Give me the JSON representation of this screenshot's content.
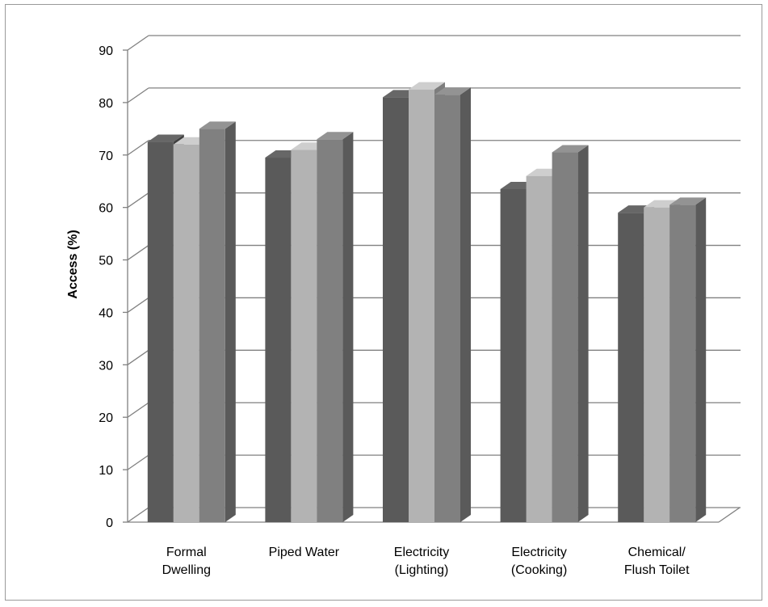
{
  "chart_data": {
    "type": "bar",
    "ylabel": "Access (%)",
    "xlabel": "",
    "ylim": [
      0,
      90
    ],
    "yticks": [
      "0",
      "10",
      "20",
      "30",
      "40",
      "50",
      "60",
      "70",
      "80",
      "90"
    ],
    "categories": [
      [
        "Formal",
        "Dwelling"
      ],
      [
        "Piped Water"
      ],
      [
        "Electricity",
        "(Lighting)"
      ],
      [
        "Electricity",
        "(Cooking)"
      ],
      [
        "Chemical/",
        "Flush Toilet"
      ]
    ],
    "series": [
      {
        "values": [
          72.5,
          69.5,
          81,
          63.5,
          59
        ],
        "color": "#5a5a5a"
      },
      {
        "values": [
          72,
          71,
          82.5,
          66,
          60
        ],
        "color": "#b3b3b3"
      },
      {
        "values": [
          75,
          73,
          81.5,
          70.5,
          60.5
        ],
        "color": "#808080"
      }
    ],
    "grid": true,
    "legend": "none"
  }
}
